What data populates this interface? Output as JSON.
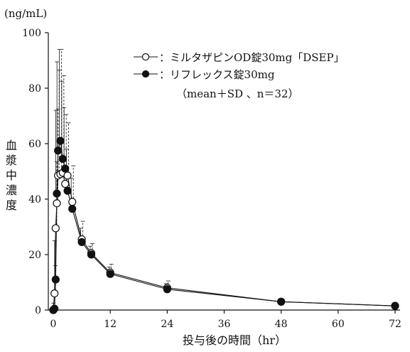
{
  "chart_data": {
    "type": "line",
    "title": "",
    "xlabel": "投与後の時間（hr）",
    "ylabel_chars": [
      "血",
      "漿",
      "中",
      "濃",
      "度"
    ],
    "y_unit": "(ng/mL)",
    "xlim": [
      0,
      72
    ],
    "ylim": [
      0,
      100
    ],
    "x_ticks": [
      0,
      12,
      24,
      36,
      48,
      60,
      72
    ],
    "y_ticks": [
      0,
      20,
      40,
      60,
      80,
      100
    ],
    "grid": false,
    "legend_position": "top-right",
    "legend_note": "（mean＋SD 、n＝32）",
    "series": [
      {
        "name": "：ミルタザピンOD錠30mg「DSEP」",
        "marker": "open-circle",
        "color": "#111111",
        "points": [
          {
            "x": 0,
            "y": 0,
            "sd": 0
          },
          {
            "x": 0.25,
            "y": 6,
            "sd": 10
          },
          {
            "x": 0.5,
            "y": 29.5,
            "sd": 24
          },
          {
            "x": 0.75,
            "y": 38.5,
            "sd": 34
          },
          {
            "x": 1,
            "y": 48.5,
            "sd": 38
          },
          {
            "x": 1.5,
            "y": 49,
            "sd": 45
          },
          {
            "x": 2,
            "y": 49.5,
            "sd": 35
          },
          {
            "x": 2.5,
            "y": 45.5,
            "sd": 25
          },
          {
            "x": 3,
            "y": 48.5,
            "sd": 19
          },
          {
            "x": 4,
            "y": 39,
            "sd": 13
          },
          {
            "x": 6,
            "y": 25.5,
            "sd": 6.5
          },
          {
            "x": 8,
            "y": 20.5,
            "sd": 3.5
          },
          {
            "x": 12,
            "y": 13.5,
            "sd": 3
          },
          {
            "x": 24,
            "y": 8,
            "sd": 2.5
          },
          {
            "x": 48,
            "y": 3,
            "sd": 1
          },
          {
            "x": 72,
            "y": 1.5,
            "sd": 0.5
          }
        ]
      },
      {
        "name": "：リフレックス錠30mg",
        "marker": "filled-circle",
        "color": "#111111",
        "points": [
          {
            "x": 0,
            "y": 0,
            "sd": 0
          },
          {
            "x": 0.25,
            "y": 0.5,
            "sd": 2
          },
          {
            "x": 0.5,
            "y": 11,
            "sd": 14
          },
          {
            "x": 0.75,
            "y": 42,
            "sd": 30
          },
          {
            "x": 1,
            "y": 57.5,
            "sd": 32
          },
          {
            "x": 1.5,
            "y": 61,
            "sd": 33
          },
          {
            "x": 2,
            "y": 54.5,
            "sd": 28
          },
          {
            "x": 2.5,
            "y": 51,
            "sd": 22
          },
          {
            "x": 3,
            "y": 43,
            "sd": 15
          },
          {
            "x": 4,
            "y": 36.5,
            "sd": 11
          },
          {
            "x": 6,
            "y": 24.5,
            "sd": 5
          },
          {
            "x": 8,
            "y": 20,
            "sd": 3
          },
          {
            "x": 12,
            "y": 13,
            "sd": 2.5
          },
          {
            "x": 24,
            "y": 7.5,
            "sd": 2
          },
          {
            "x": 48,
            "y": 3,
            "sd": 1
          },
          {
            "x": 72,
            "y": 1.5,
            "sd": 0.5
          }
        ]
      }
    ]
  }
}
